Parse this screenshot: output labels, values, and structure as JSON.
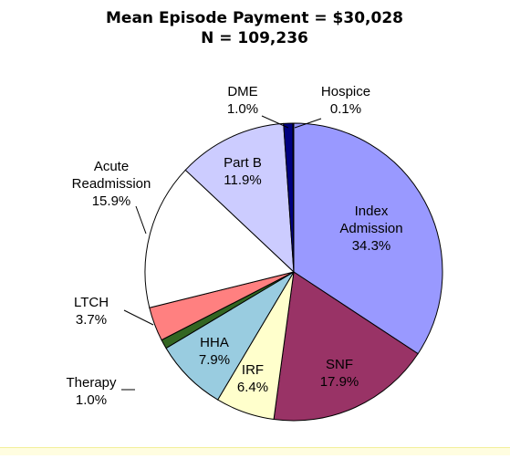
{
  "chart_data": {
    "type": "pie",
    "title": "Mean Episode Payment = $30,028",
    "subtitle": "N = 109,236",
    "start_angle_deg": 0,
    "direction": "clockwise",
    "slices": [
      {
        "label": "Index Admission",
        "value": 34.3,
        "value_label": "34.3%",
        "color": "#9999ff"
      },
      {
        "label": "SNF",
        "value": 17.9,
        "value_label": "17.9%",
        "color": "#993366"
      },
      {
        "label": "IRF",
        "value": 6.4,
        "value_label": "6.4%",
        "color": "#ffffcc"
      },
      {
        "label": "HHA",
        "value": 7.9,
        "value_label": "7.9%",
        "color": "#99cce0"
      },
      {
        "label": "Therapy",
        "value": 1.0,
        "value_label": "1.0%",
        "color": "#336622"
      },
      {
        "label": "LTCH",
        "value": 3.7,
        "value_label": "3.7%",
        "color": "#ff8080"
      },
      {
        "label": "Acute Readmission",
        "value": 15.9,
        "value_label": "15.9%",
        "color": "#ffffff"
      },
      {
        "label": "Part B",
        "value": 11.9,
        "value_label": "11.9%",
        "color": "#ccccff"
      },
      {
        "label": "DME",
        "value": 1.0,
        "value_label": "1.0%",
        "color": "#000080"
      },
      {
        "label": "Hospice",
        "value": 0.1,
        "value_label": "0.1%",
        "color": "#2244bb"
      }
    ]
  }
}
